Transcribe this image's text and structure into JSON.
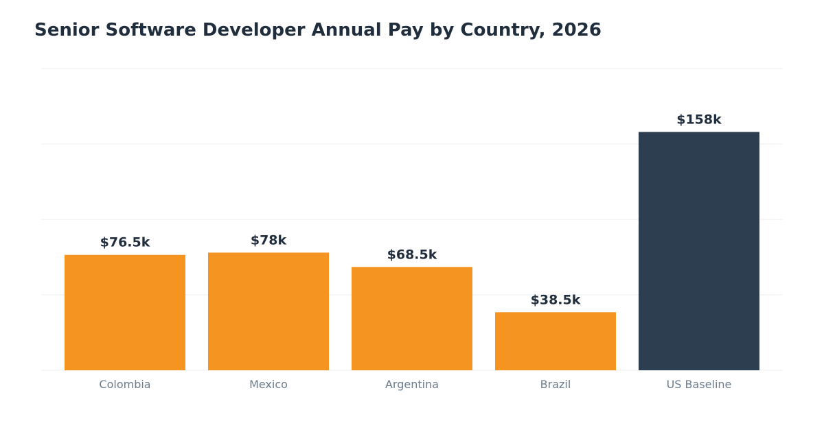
{
  "chart_data": {
    "type": "bar",
    "title": "Senior Software Developer Annual Pay by Country, 2026",
    "xlabel": "",
    "ylabel": "",
    "categories": [
      "Colombia",
      "Mexico",
      "Argentina",
      "Brazil",
      "US Baseline"
    ],
    "values": [
      76500,
      78000,
      68500,
      38500,
      158000
    ],
    "value_labels": [
      "$76.5k",
      "$78k",
      "$68.5k",
      "$38.5k",
      "$158k"
    ],
    "ylim": [
      0,
      200000
    ],
    "grid": true,
    "legend": "none",
    "colors": {
      "default_bar": "#f59420",
      "baseline_bar": "#2d3e50"
    },
    "highlight_index": 4
  }
}
